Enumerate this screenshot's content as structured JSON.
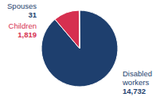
{
  "chart_data": {
    "type": "pie",
    "categories": [
      "Disabled\nworkers",
      "Children",
      "Spouses"
    ],
    "values": [
      14732,
      1819,
      31
    ],
    "value_labels": [
      "14,732",
      "1,819",
      "31"
    ],
    "colors": [
      "#1e3f6e",
      "#d63050",
      "#1e3f6e"
    ]
  }
}
